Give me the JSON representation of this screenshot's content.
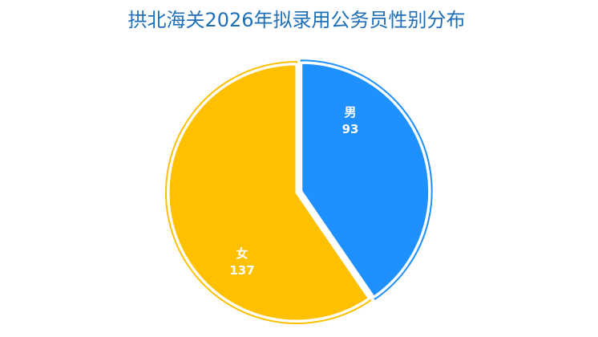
{
  "chart_data": {
    "type": "pie",
    "title": "拱北海关2026年拟录用公务员性别分布",
    "categories": [
      "男",
      "女"
    ],
    "values": [
      93,
      137
    ],
    "colors": [
      "#1e90ff",
      "#ffc000"
    ]
  }
}
